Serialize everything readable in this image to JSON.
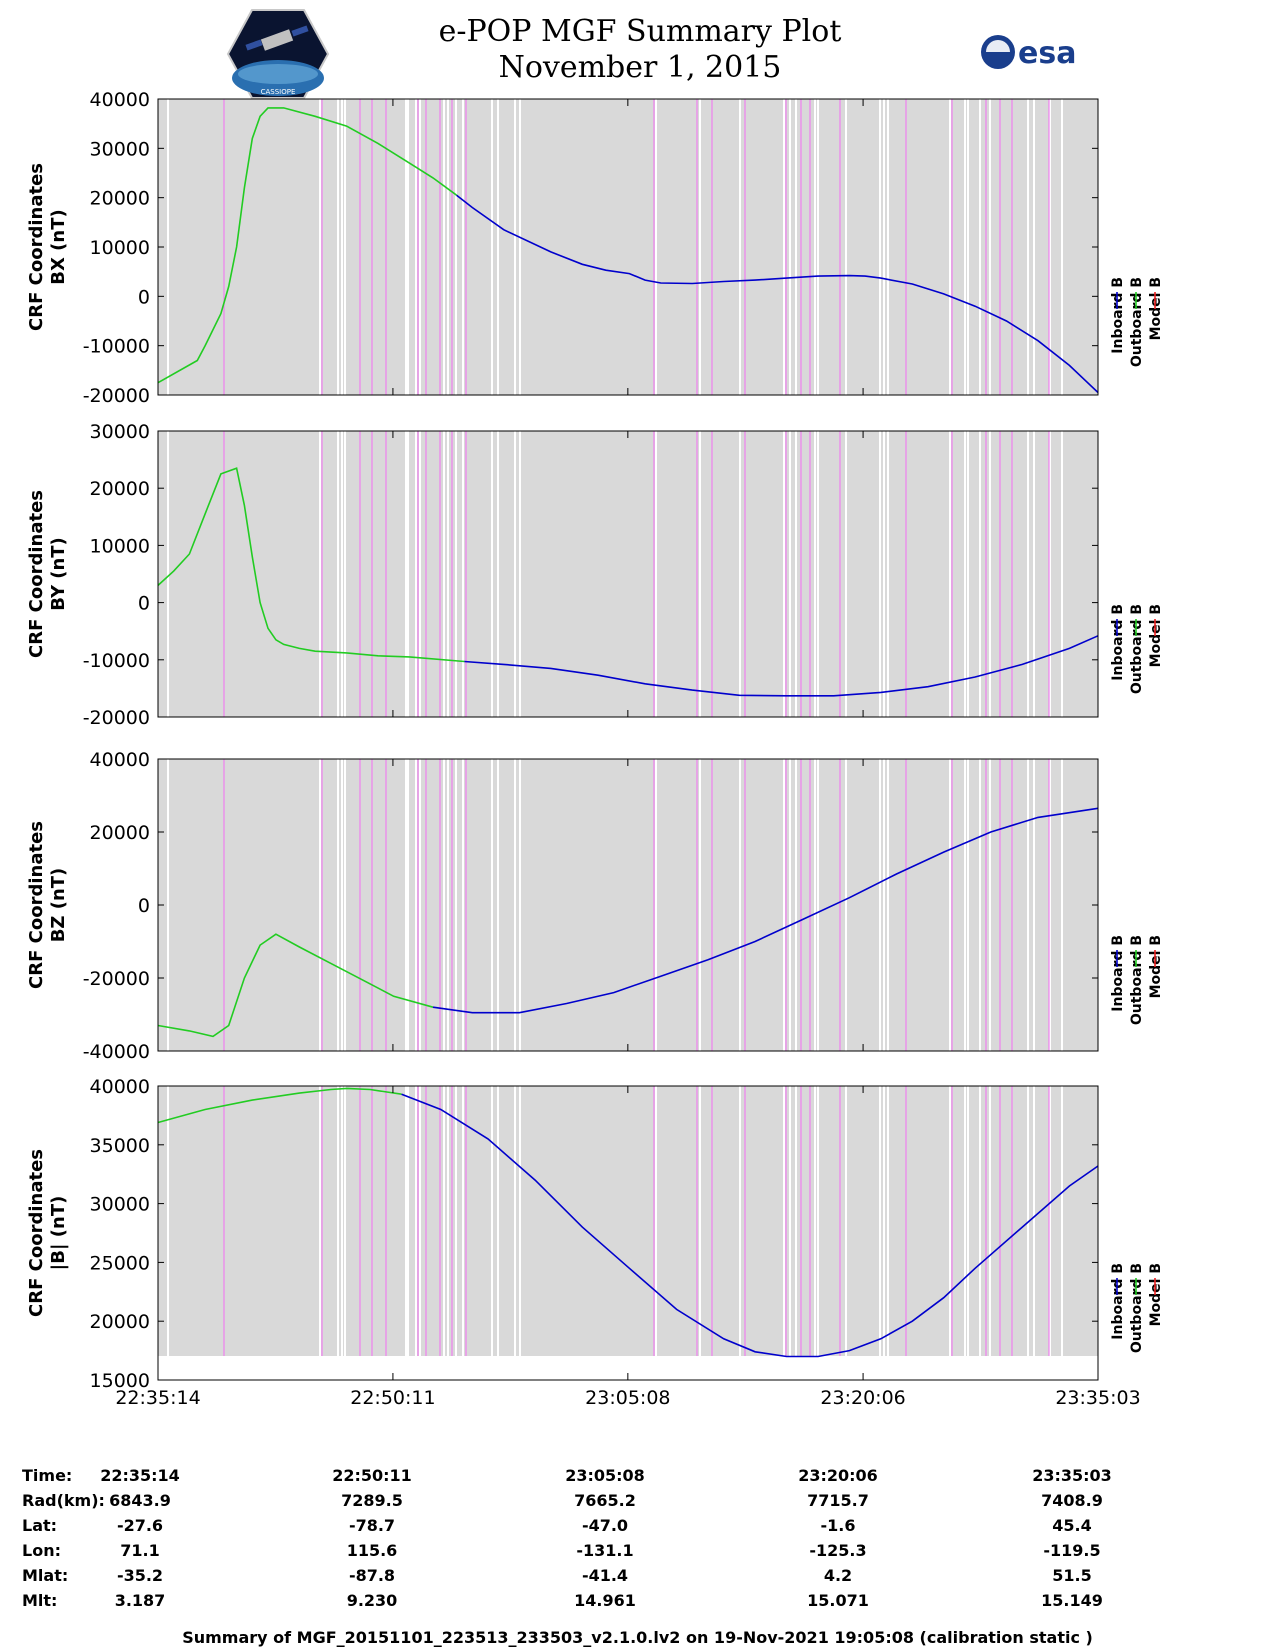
{
  "header": {
    "title_line1": "e-POP MGF Summary Plot",
    "title_line2": "November 1, 2015",
    "left_logo_text": "CASSIOPE",
    "right_logo_text": "esa"
  },
  "colors": {
    "inboard": "#0000cc",
    "outboard": "#22cc22",
    "model": "#ee2222",
    "background_band": "#d9d9d9",
    "magenta_marker": "#f080f0"
  },
  "chart_data": [
    {
      "type": "line",
      "ylabel_line1": "CRF Coordinates",
      "ylabel_line2": "BX (nT)",
      "ylim": [
        -20000,
        40000
      ],
      "yticks": [
        -20000,
        -10000,
        0,
        10000,
        20000,
        30000,
        40000
      ],
      "ytick_labels": [
        "-20000",
        "-10000",
        "0",
        "10000",
        "20000",
        "30000",
        "40000"
      ],
      "xlim": [
        0,
        59.82
      ],
      "xticks": [
        0,
        14.95,
        29.9,
        44.87,
        59.82
      ],
      "legend": [
        "Inboard B",
        "Outboard B",
        "Model B"
      ],
      "series": [
        {
          "name": "Outboard B",
          "x": [
            0,
            2.5,
            3,
            4,
            4.5,
            5,
            5.5,
            6,
            6.5,
            7,
            8,
            10,
            12,
            14,
            16,
            17.5,
            19
          ],
          "y": [
            -17500,
            -13000,
            -10000,
            -3500,
            2000,
            10000,
            22000,
            32000,
            36500,
            38200,
            38200,
            36500,
            34500,
            31000,
            27000,
            24000,
            20500
          ]
        },
        {
          "name": "Inboard B",
          "x": [
            19,
            20,
            22,
            25,
            27,
            28.5,
            30,
            31,
            32,
            34,
            36,
            38,
            40,
            42,
            44,
            45,
            46,
            48,
            50,
            52,
            54,
            56,
            58,
            59.82
          ],
          "y": [
            20500,
            18000,
            13500,
            9000,
            6500,
            5300,
            4600,
            3300,
            2700,
            2600,
            3000,
            3300,
            3700,
            4100,
            4200,
            4100,
            3700,
            2500,
            500,
            -2000,
            -5000,
            -9000,
            -14000,
            -19500
          ]
        }
      ]
    },
    {
      "type": "line",
      "ylabel_line1": "CRF Coordinates",
      "ylabel_line2": "BY (nT)",
      "ylim": [
        -20000,
        30000
      ],
      "yticks": [
        -20000,
        -10000,
        0,
        10000,
        20000,
        30000
      ],
      "ytick_labels": [
        "-20000",
        "-10000",
        "0",
        "10000",
        "20000",
        "30000"
      ],
      "xlim": [
        0,
        59.82
      ],
      "xticks": [
        0,
        14.95,
        29.9,
        44.87,
        59.82
      ],
      "legend": [
        "Inboard B",
        "Outboard B",
        "Model B"
      ],
      "series": [
        {
          "name": "Outboard B",
          "x": [
            0,
            1,
            2,
            3,
            4,
            5,
            5.5,
            6,
            6.5,
            7,
            7.5,
            8,
            9,
            10,
            12,
            14,
            16,
            19.5
          ],
          "y": [
            3000,
            5500,
            8500,
            15500,
            22500,
            23500,
            17000,
            8000,
            0,
            -4500,
            -6500,
            -7300,
            -8000,
            -8500,
            -8800,
            -9300,
            -9500,
            -10300
          ]
        },
        {
          "name": "Inboard B",
          "x": [
            19.5,
            22,
            25,
            28,
            31,
            34,
            37,
            40,
            43,
            46,
            49,
            52,
            55,
            58,
            59.82
          ],
          "y": [
            -10300,
            -10800,
            -11500,
            -12700,
            -14200,
            -15300,
            -16200,
            -16300,
            -16300,
            -15700,
            -14700,
            -13000,
            -10800,
            -8000,
            -5800
          ]
        }
      ]
    },
    {
      "type": "line",
      "ylabel_line1": "CRF Coordinates",
      "ylabel_line2": "BZ (nT)",
      "ylim": [
        -40000,
        40000
      ],
      "yticks": [
        -40000,
        -20000,
        0,
        20000,
        40000
      ],
      "ytick_labels": [
        "-40000",
        "-20000",
        "0",
        "20000",
        "40000"
      ],
      "xlim": [
        0,
        59.82
      ],
      "xticks": [
        0,
        14.95,
        29.9,
        44.87,
        59.82
      ],
      "legend": [
        "Inboard B",
        "Outboard B",
        "Model B"
      ],
      "series": [
        {
          "name": "Outboard B",
          "x": [
            0,
            2,
            3.5,
            4.5,
            5.5,
            6.5,
            7.5,
            9,
            11,
            13,
            15,
            17.5
          ],
          "y": [
            -33000,
            -34500,
            -36000,
            -33000,
            -20000,
            -11000,
            -8000,
            -11500,
            -16000,
            -20500,
            -25000,
            -28000
          ]
        },
        {
          "name": "Inboard B",
          "x": [
            17.5,
            20,
            23,
            26,
            29,
            32,
            35,
            38,
            41,
            44,
            47,
            50,
            53,
            56,
            59.82
          ],
          "y": [
            -28000,
            -29500,
            -29500,
            -27000,
            -24000,
            -19500,
            -15000,
            -10000,
            -4000,
            2000,
            8500,
            14500,
            20000,
            24000,
            26500
          ]
        }
      ]
    },
    {
      "type": "line",
      "ylabel_line1": "CRF Coordinates",
      "ylabel_line2": "|B| (nT)",
      "ylim": [
        15000,
        40000
      ],
      "yticks": [
        15000,
        20000,
        25000,
        30000,
        35000,
        40000
      ],
      "ytick_labels": [
        "15000",
        "20000",
        "25000",
        "30000",
        "35000",
        "40000"
      ],
      "xlim": [
        0,
        59.82
      ],
      "xticks": [
        0,
        14.95,
        29.9,
        44.87,
        59.82
      ],
      "legend": [
        "Inboard B",
        "Outboard B",
        "Model B"
      ],
      "series": [
        {
          "name": "Outboard B",
          "x": [
            0,
            3,
            6,
            9,
            11,
            12,
            13.5,
            15.5
          ],
          "y": [
            36900,
            38000,
            38800,
            39400,
            39700,
            39800,
            39700,
            39300
          ]
        },
        {
          "name": "Inboard B",
          "x": [
            15.5,
            18,
            21,
            24,
            27,
            30,
            33,
            36,
            38,
            40,
            42,
            44,
            46,
            48,
            50,
            52,
            55,
            58,
            59.82
          ],
          "y": [
            39300,
            38000,
            35500,
            32000,
            28000,
            24500,
            21000,
            18500,
            17400,
            17000,
            17000,
            17500,
            18500,
            20000,
            22000,
            24500,
            28000,
            31500,
            33200
          ]
        }
      ]
    }
  ],
  "time_axis": {
    "tick_labels": [
      "22:35:14",
      "22:50:11",
      "23:05:08",
      "23:20:06",
      "23:35:03"
    ]
  },
  "info_table": {
    "rows": [
      {
        "label": "Time:",
        "values": [
          "22:35:14",
          "22:50:11",
          "23:05:08",
          "23:20:06",
          "23:35:03"
        ]
      },
      {
        "label": "Rad(km):",
        "values": [
          "6843.9",
          "7289.5",
          "7665.2",
          "7715.7",
          "7408.9"
        ]
      },
      {
        "label": "Lat:",
        "values": [
          "-27.6",
          "-78.7",
          "-47.0",
          "-1.6",
          "45.4"
        ]
      },
      {
        "label": "Lon:",
        "values": [
          "71.1",
          "115.6",
          "-131.1",
          "-125.3",
          "-119.5"
        ]
      },
      {
        "label": "Mlat:",
        "values": [
          "-35.2",
          "-87.8",
          "-41.4",
          "4.2",
          "51.5"
        ]
      },
      {
        "label": "Mlt:",
        "values": [
          "3.187",
          "9.230",
          "14.961",
          "15.071",
          "15.149"
        ]
      }
    ]
  },
  "footer": {
    "text": "Summary of MGF_20151101_223513_233503_v2.1.0.lv2 on 19-Nov-2021 19:05:08 (calibration static )"
  }
}
